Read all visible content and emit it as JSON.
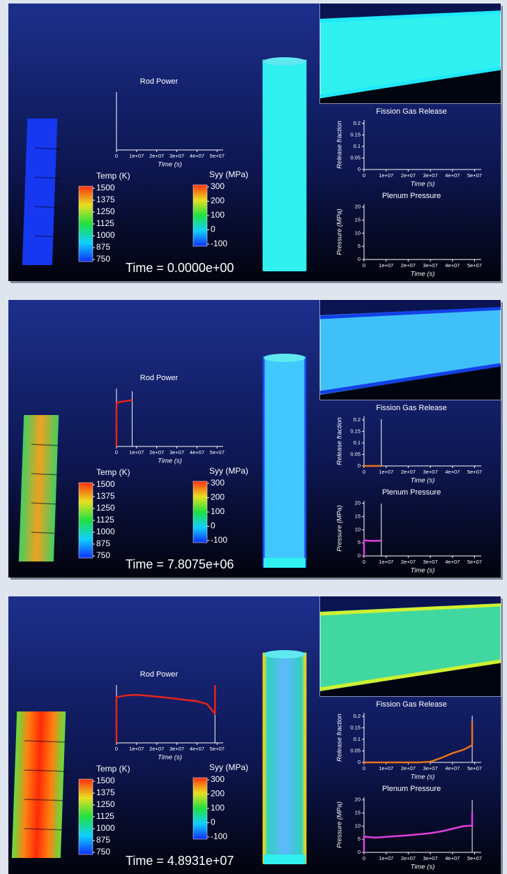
{
  "colorbars": [
    {
      "label": "Temp (K)",
      "ticks": [
        1500,
        1375,
        1250,
        1125,
        1000,
        875,
        750
      ]
    },
    {
      "label": "Syy (MPa)",
      "ticks": [
        300,
        200,
        100,
        0,
        -100
      ]
    }
  ],
  "panels": [
    {
      "time": "Time = 0.0000e+00"
    },
    {
      "time": "Time = 7.8075e+06"
    },
    {
      "time": "Time = 4.8931e+07"
    }
  ],
  "chart_data": [
    {
      "type": "line",
      "title": "Rod Power",
      "xlabel": "Time (s)",
      "x": [],
      "series": [
        {
          "color": "#e8231a",
          "values": []
        }
      ],
      "xlim": [
        0,
        53000000
      ],
      "ylim": [
        0,
        1
      ],
      "xticks": [
        0,
        {
          "value": 10000000,
          "label": "1e+07"
        },
        {
          "value": 20000000,
          "label": "2e+07"
        },
        {
          "value": 30000000,
          "label": "3e+07"
        },
        {
          "value": 40000000,
          "label": "4e+07"
        },
        {
          "value": 50000000,
          "label": "5e+07"
        }
      ]
    },
    {
      "type": "line",
      "title": "Fission Gas Release",
      "xlabel": "Time (s)",
      "ylabel": "Release fraction",
      "x": [],
      "series": [
        {
          "color": "#e8731a",
          "values": []
        }
      ],
      "xlim": [
        0,
        53000000
      ],
      "ylim": [
        0,
        0.215
      ],
      "yticks": [
        0,
        0.05,
        0.1,
        0.15,
        0.2
      ],
      "xticks": [
        0,
        {
          "value": 10000000,
          "label": "1e+07"
        },
        {
          "value": 20000000,
          "label": "2e+07"
        },
        {
          "value": 30000000,
          "label": "3e+07"
        },
        {
          "value": 40000000,
          "label": "4e+07"
        },
        {
          "value": 50000000,
          "label": "5e+07"
        }
      ]
    },
    {
      "type": "line",
      "title": "Plenum Pressure",
      "xlabel": "Time (s)",
      "ylabel": "Pressure (MPa)",
      "x": [],
      "series": [
        {
          "color": "#e040e0",
          "values": []
        }
      ],
      "xlim": [
        0,
        53000000
      ],
      "ylim": [
        0,
        21
      ],
      "yticks": [
        0,
        5,
        10,
        15,
        20
      ],
      "xticks": [
        0,
        {
          "value": 10000000,
          "label": "1e+07"
        },
        {
          "value": 20000000,
          "label": "2e+07"
        },
        {
          "value": 30000000,
          "label": "3e+07"
        },
        {
          "value": 40000000,
          "label": "4e+07"
        },
        {
          "value": 50000000,
          "label": "5e+07"
        }
      ]
    },
    {
      "type": "line",
      "title": "Rod Power",
      "xlabel": "Time (s)",
      "x": [
        0,
        0,
        2000000,
        7807500
      ],
      "series": [
        {
          "color": "#e8231a",
          "values": [
            0,
            0.75,
            0.77,
            0.8
          ]
        }
      ],
      "xlim": [
        0,
        53000000
      ],
      "ylim": [
        0,
        1
      ],
      "time_marker": 7807500,
      "xticks": [
        0,
        {
          "value": 10000000,
          "label": "1e+07"
        },
        {
          "value": 20000000,
          "label": "2e+07"
        },
        {
          "value": 30000000,
          "label": "3e+07"
        },
        {
          "value": 40000000,
          "label": "4e+07"
        },
        {
          "value": 50000000,
          "label": "5e+07"
        }
      ]
    },
    {
      "type": "line",
      "title": "Fission Gas Release",
      "xlabel": "Time (s)",
      "ylabel": "Release fraction",
      "x": [
        0,
        7807500
      ],
      "series": [
        {
          "color": "#e8731a",
          "values": [
            0,
            0
          ]
        }
      ],
      "xlim": [
        0,
        53000000
      ],
      "ylim": [
        0,
        0.215
      ],
      "yticks": [
        0,
        0.05,
        0.1,
        0.15,
        0.2
      ],
      "time_marker": 7807500,
      "xticks": [
        0,
        {
          "value": 10000000,
          "label": "1e+07"
        },
        {
          "value": 20000000,
          "label": "2e+07"
        },
        {
          "value": 30000000,
          "label": "3e+07"
        },
        {
          "value": 40000000,
          "label": "4e+07"
        },
        {
          "value": 50000000,
          "label": "5e+07"
        }
      ]
    },
    {
      "type": "line",
      "title": "Plenum Pressure",
      "xlabel": "Time (s)",
      "ylabel": "Pressure (MPa)",
      "x": [
        0,
        0,
        1500000,
        4000000,
        7807500
      ],
      "series": [
        {
          "color": "#e040e0",
          "values": [
            0,
            6,
            5.8,
            5.7,
            5.8
          ]
        }
      ],
      "xlim": [
        0,
        53000000
      ],
      "ylim": [
        0,
        21
      ],
      "yticks": [
        0,
        5,
        10,
        15,
        20
      ],
      "time_marker": 7807500,
      "xticks": [
        0,
        {
          "value": 10000000,
          "label": "1e+07"
        },
        {
          "value": 20000000,
          "label": "2e+07"
        },
        {
          "value": 30000000,
          "label": "3e+07"
        },
        {
          "value": 40000000,
          "label": "4e+07"
        },
        {
          "value": 50000000,
          "label": "5e+07"
        }
      ]
    },
    {
      "type": "line",
      "title": "Rod Power",
      "xlabel": "Time (s)",
      "x": [
        0,
        0,
        5000000,
        10000000,
        20000000,
        30000000,
        40000000,
        45000000,
        48931000,
        48931000
      ],
      "series": [
        {
          "color": "#e8231a",
          "values": [
            0,
            0.79,
            0.82,
            0.83,
            0.8,
            0.76,
            0.72,
            0.67,
            0.5,
            1.0
          ]
        }
      ],
      "xlim": [
        0,
        53000000
      ],
      "ylim": [
        0,
        1
      ],
      "time_marker": 48931000,
      "xticks": [
        0,
        {
          "value": 10000000,
          "label": "1e+07"
        },
        {
          "value": 20000000,
          "label": "2e+07"
        },
        {
          "value": 30000000,
          "label": "3e+07"
        },
        {
          "value": 40000000,
          "label": "4e+07"
        },
        {
          "value": 50000000,
          "label": "5e+07"
        }
      ]
    },
    {
      "type": "line",
      "title": "Fission Gas Release",
      "xlabel": "Time (s)",
      "ylabel": "Release fraction",
      "x": [
        0,
        10000000,
        20000000,
        25000000,
        30000000,
        35000000,
        40000000,
        45000000,
        48000000,
        48931000,
        48931000
      ],
      "series": [
        {
          "color": "#e8731a",
          "values": [
            0,
            0,
            0,
            0,
            0.003,
            0.02,
            0.04,
            0.055,
            0.07,
            0.075,
            0.18
          ]
        }
      ],
      "xlim": [
        0,
        53000000
      ],
      "ylim": [
        0,
        0.215
      ],
      "yticks": [
        0,
        0.05,
        0.1,
        0.15,
        0.2
      ],
      "time_marker": 48931000,
      "xticks": [
        0,
        {
          "value": 10000000,
          "label": "1e+07"
        },
        {
          "value": 20000000,
          "label": "2e+07"
        },
        {
          "value": 30000000,
          "label": "3e+07"
        },
        {
          "value": 40000000,
          "label": "4e+07"
        },
        {
          "value": 50000000,
          "label": "5e+07"
        }
      ]
    },
    {
      "type": "line",
      "title": "Plenum Pressure",
      "xlabel": "Time (s)",
      "ylabel": "Pressure (MPa)",
      "x": [
        0,
        0,
        5000000,
        10000000,
        20000000,
        30000000,
        35000000,
        40000000,
        45000000,
        48931000,
        48931000
      ],
      "series": [
        {
          "color": "#e040e0",
          "values": [
            0,
            6,
            5.6,
            5.9,
            6.5,
            7.3,
            8,
            9,
            10,
            10.2,
            15.5
          ]
        }
      ],
      "xlim": [
        0,
        53000000
      ],
      "ylim": [
        0,
        21
      ],
      "yticks": [
        0,
        5,
        10,
        15,
        20
      ],
      "time_marker": 48931000,
      "xticks": [
        0,
        {
          "value": 10000000,
          "label": "1e+07"
        },
        {
          "value": 20000000,
          "label": "2e+07"
        },
        {
          "value": 30000000,
          "label": "3e+07"
        },
        {
          "value": 40000000,
          "label": "4e+07"
        },
        {
          "value": 50000000,
          "label": "5e+07"
        }
      ]
    }
  ]
}
